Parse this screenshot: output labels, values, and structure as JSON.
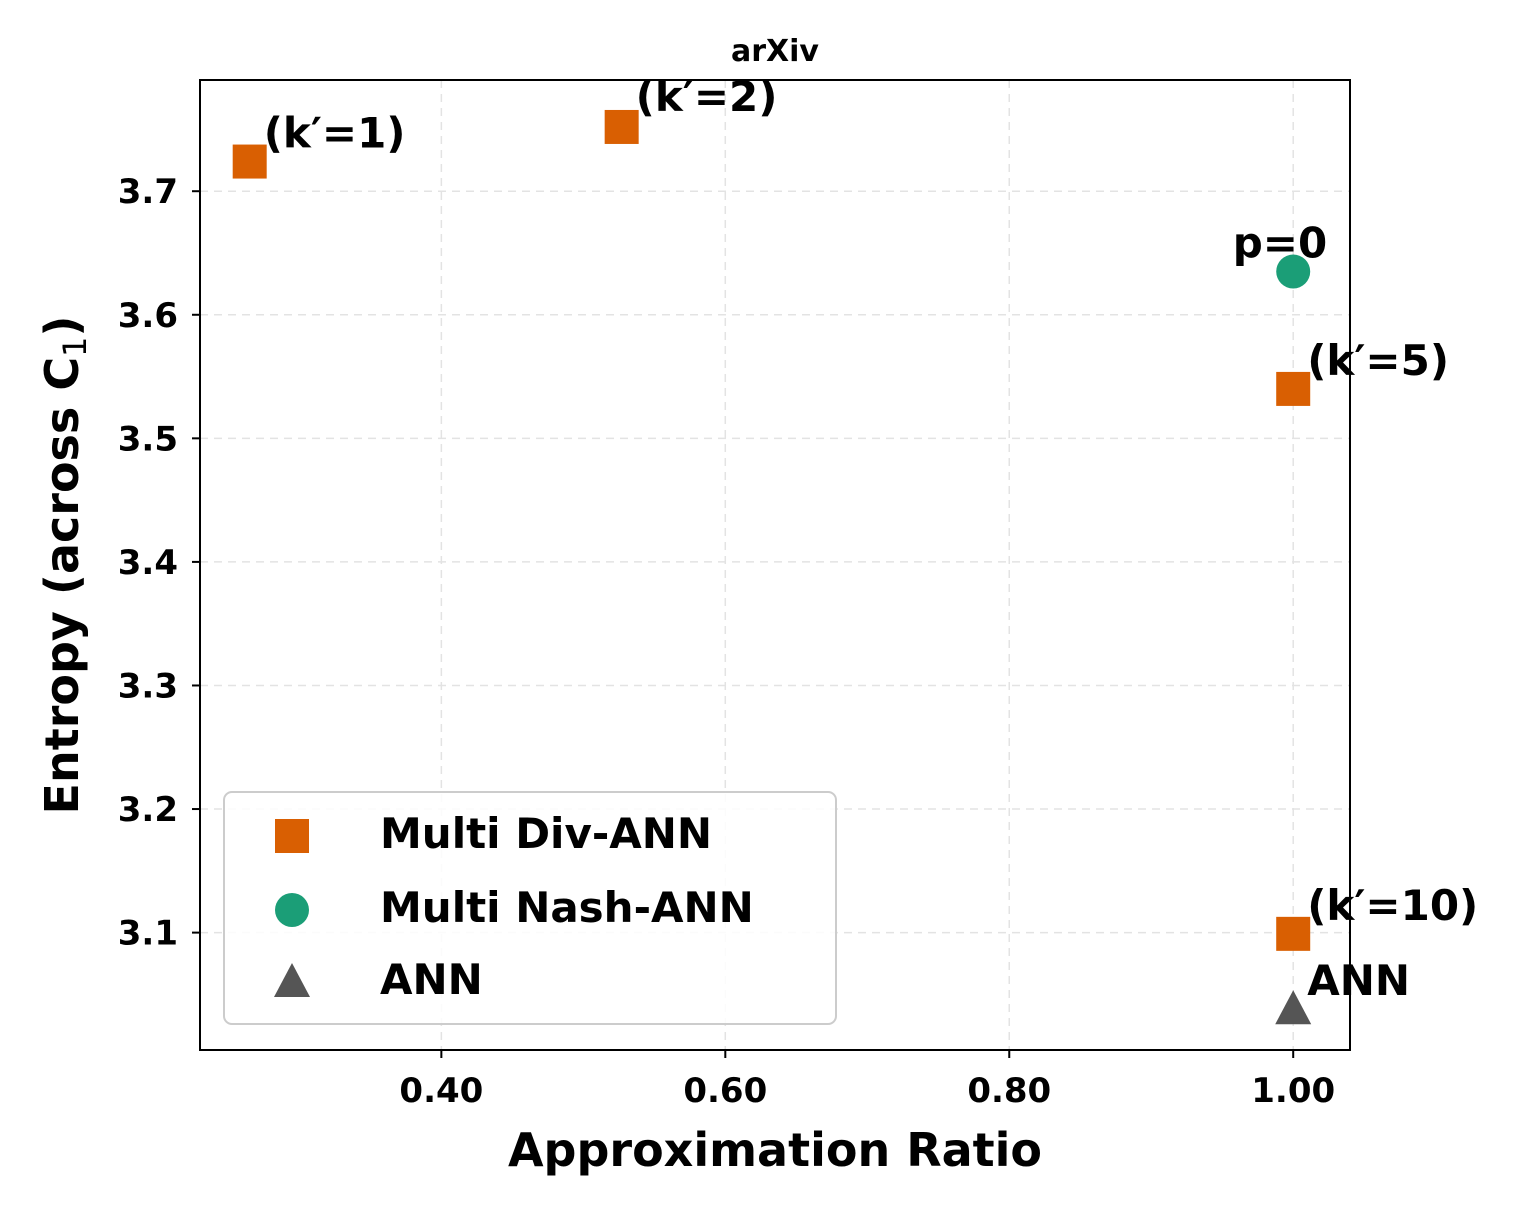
{
  "chart_data": {
    "type": "scatter",
    "title": "arXiv",
    "xlabel": "Approximation Ratio",
    "ylabel": "Entropy (across C",
    "ylabel_sub": "1",
    "ylabel_close": ")",
    "xlim": [
      0.23,
      1.04
    ],
    "ylim": [
      3.005,
      3.79
    ],
    "xticks": [
      {
        "value": 0.4,
        "label": "0.40"
      },
      {
        "value": 0.6,
        "label": "0.60"
      },
      {
        "value": 0.8,
        "label": "0.80"
      },
      {
        "value": 1.0,
        "label": "1.00"
      }
    ],
    "yticks": [
      {
        "value": 3.1,
        "label": "3.1"
      },
      {
        "value": 3.2,
        "label": "3.2"
      },
      {
        "value": 3.3,
        "label": "3.3"
      },
      {
        "value": 3.4,
        "label": "3.4"
      },
      {
        "value": 3.5,
        "label": "3.5"
      },
      {
        "value": 3.6,
        "label": "3.6"
      },
      {
        "value": 3.7,
        "label": "3.7"
      }
    ],
    "grid": true,
    "legend_position": "lower-left",
    "series": [
      {
        "name": "Multi Div-ANN",
        "marker": "square",
        "color": "#d95f02",
        "points": [
          {
            "x": 0.265,
            "y": 3.724,
            "label": "(k′=1)"
          },
          {
            "x": 0.527,
            "y": 3.752,
            "label": "(k′=2)"
          },
          {
            "x": 1.0,
            "y": 3.54,
            "label": "(k′=5)"
          },
          {
            "x": 1.0,
            "y": 3.099,
            "label": "(k′=10)"
          }
        ]
      },
      {
        "name": "Multi Nash-ANN",
        "marker": "circle",
        "color": "#1b9e77",
        "points": [
          {
            "x": 1.0,
            "y": 3.635,
            "label": "p=0"
          }
        ]
      },
      {
        "name": "ANN",
        "marker": "triangle",
        "color": "#555555",
        "points": [
          {
            "x": 1.0,
            "y": 3.038,
            "label": "ANN"
          }
        ]
      }
    ]
  }
}
